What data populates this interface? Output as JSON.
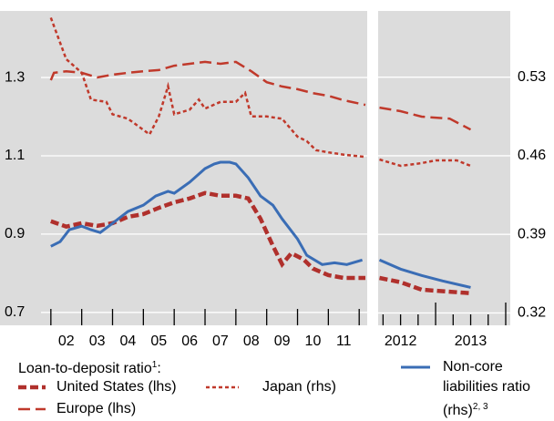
{
  "chart_data": [
    {
      "type": "line",
      "legend_title": "Loan-to-deposit ratio",
      "legend_title_note": "1",
      "legend_title_end": ":",
      "xlim": [
        2000.35,
        2012.26
      ],
      "ylim": [
        0.667,
        1.47
      ],
      "y2lim": [
        0.309,
        0.589
      ],
      "yticks": [
        0.7,
        0.9,
        1.1,
        1.3
      ],
      "xticks": [
        {
          "value": 2002.5,
          "label": "02"
        },
        {
          "value": 2003.5,
          "label": "03"
        },
        {
          "value": 2004.5,
          "label": "04"
        },
        {
          "value": 2005.5,
          "label": "05"
        },
        {
          "value": 2006.5,
          "label": "06"
        },
        {
          "value": 2007.5,
          "label": "07"
        },
        {
          "value": 2008.5,
          "label": "08"
        },
        {
          "value": 2009.5,
          "label": "09"
        },
        {
          "value": 2010.5,
          "label": "10"
        },
        {
          "value": 2011.5,
          "label": "11"
        }
      ],
      "xtick_marks": [
        2002,
        2003,
        2004,
        2005,
        2006,
        2007,
        2008,
        2009,
        2010,
        2011,
        2012
      ],
      "grid": true,
      "series": [
        {
          "name": "United States (lhs)",
          "color": "#b0302c",
          "linestyle": "dashed",
          "axis": "y",
          "x": [
            2002,
            2002.5,
            2003,
            2003.5,
            2004,
            2004.5,
            2005,
            2005.5,
            2006,
            2006.5,
            2007,
            2007.5,
            2008,
            2008.4,
            2008.8,
            2009.2,
            2009.5,
            2009.8,
            2010.2,
            2010.5,
            2011,
            2011.5,
            2012.2
          ],
          "values": [
            0.933,
            0.919,
            0.928,
            0.921,
            0.928,
            0.944,
            0.951,
            0.967,
            0.981,
            0.991,
            1.005,
            0.998,
            0.998,
            0.991,
            0.939,
            0.87,
            0.823,
            0.851,
            0.835,
            0.812,
            0.795,
            0.788,
            0.788
          ]
        },
        {
          "name": "Japan (rhs)",
          "color": "#c0392b",
          "linestyle": "dotted",
          "axis": "y2",
          "x": [
            2002,
            2002.5,
            2003,
            2003.3,
            2003.8,
            2004,
            2004.5,
            2004.9,
            2005.2,
            2005.5,
            2005.8,
            2006,
            2006.5,
            2006.8,
            2007,
            2007.5,
            2008,
            2008.3,
            2008.5,
            2009,
            2009.5,
            2010,
            2010.3,
            2010.6,
            2011,
            2011.5,
            2012.2
          ],
          "values": [
            0.583,
            0.546,
            0.534,
            0.51,
            0.508,
            0.497,
            0.493,
            0.485,
            0.479,
            0.495,
            0.522,
            0.497,
            0.501,
            0.51,
            0.502,
            0.508,
            0.508,
            0.516,
            0.495,
            0.495,
            0.493,
            0.477,
            0.473,
            0.465,
            0.463,
            0.461,
            0.459
          ]
        },
        {
          "name": "Europe (lhs)",
          "color": "#c0392b",
          "linestyle": "longdash",
          "axis": "y",
          "x": [
            2002,
            2002.1,
            2002.5,
            2003,
            2003.5,
            2004,
            2004.5,
            2005,
            2005.5,
            2006,
            2006.5,
            2007,
            2007.5,
            2008,
            2008.5,
            2009,
            2009.5,
            2010,
            2010.5,
            2011,
            2011.5,
            2012.2
          ],
          "values": [
            1.293,
            1.312,
            1.316,
            1.312,
            1.3,
            1.307,
            1.312,
            1.316,
            1.319,
            1.33,
            1.335,
            1.34,
            1.335,
            1.34,
            1.316,
            1.288,
            1.277,
            1.27,
            1.26,
            1.253,
            1.242,
            1.23
          ]
        },
        {
          "name": "Non-core liabilities ratio (rhs)",
          "note": "2, 3",
          "color": "#3a6db5",
          "linestyle": "solid",
          "axis": "y2",
          "x": [
            2002,
            2002.3,
            2002.6,
            2003,
            2003.3,
            2003.6,
            2004,
            2004.5,
            2005,
            2005.4,
            2005.8,
            2006,
            2006.5,
            2007,
            2007.3,
            2007.5,
            2007.8,
            2008,
            2008.4,
            2008.8,
            2009.2,
            2009.5,
            2010,
            2010.3,
            2010.8,
            2011.2,
            2011.6,
            2012.1
          ],
          "values": [
            0.3794,
            0.3835,
            0.3941,
            0.3973,
            0.3941,
            0.3916,
            0.3998,
            0.4104,
            0.416,
            0.4242,
            0.4283,
            0.4266,
            0.4364,
            0.4486,
            0.4527,
            0.4543,
            0.4543,
            0.4527,
            0.4405,
            0.4242,
            0.416,
            0.4038,
            0.3859,
            0.3713,
            0.3631,
            0.3647,
            0.3631,
            0.3672
          ]
        }
      ]
    },
    {
      "type": "line",
      "xlim": [
        2012.18,
        2014.065
      ],
      "ylim": [
        0.667,
        1.47
      ],
      "y2lim": [
        0.309,
        0.589
      ],
      "y2ticks": [
        0.32,
        0.39,
        0.46,
        0.53
      ],
      "xticks": [
        {
          "value": 2012.5,
          "label": "2012"
        },
        {
          "value": 2013.5,
          "label": "2013"
        }
      ],
      "xtick_marks": [
        2012.25,
        2012.5,
        2012.75,
        2013,
        2013.25,
        2013.5,
        2013.75,
        2014
      ],
      "grid": true,
      "series": [
        {
          "color": "#b0302c",
          "linestyle": "dashed",
          "axis": "y",
          "x": [
            2012.2,
            2012.5,
            2012.8,
            2013.2,
            2013.5
          ],
          "values": [
            0.788,
            0.777,
            0.758,
            0.753,
            0.749
          ]
        },
        {
          "color": "#c0392b",
          "linestyle": "dotted",
          "axis": "y2",
          "x": [
            2012.2,
            2012.5,
            2012.8,
            2013,
            2013.3,
            2013.5
          ],
          "values": [
            0.4567,
            0.451,
            0.4535,
            0.4559,
            0.4559,
            0.451
          ]
        },
        {
          "color": "#c0392b",
          "linestyle": "longdash",
          "axis": "y",
          "x": [
            2012.2,
            2012.5,
            2012.8,
            2013.2,
            2013.5
          ],
          "values": [
            1.223,
            1.214,
            1.2,
            1.195,
            1.167
          ]
        },
        {
          "color": "#3a6db5",
          "linestyle": "solid",
          "axis": "y2",
          "x": [
            2012.2,
            2012.5,
            2012.8,
            2013.1,
            2013.5
          ],
          "values": [
            0.3672,
            0.3591,
            0.3534,
            0.3485,
            0.3428
          ]
        }
      ]
    }
  ]
}
